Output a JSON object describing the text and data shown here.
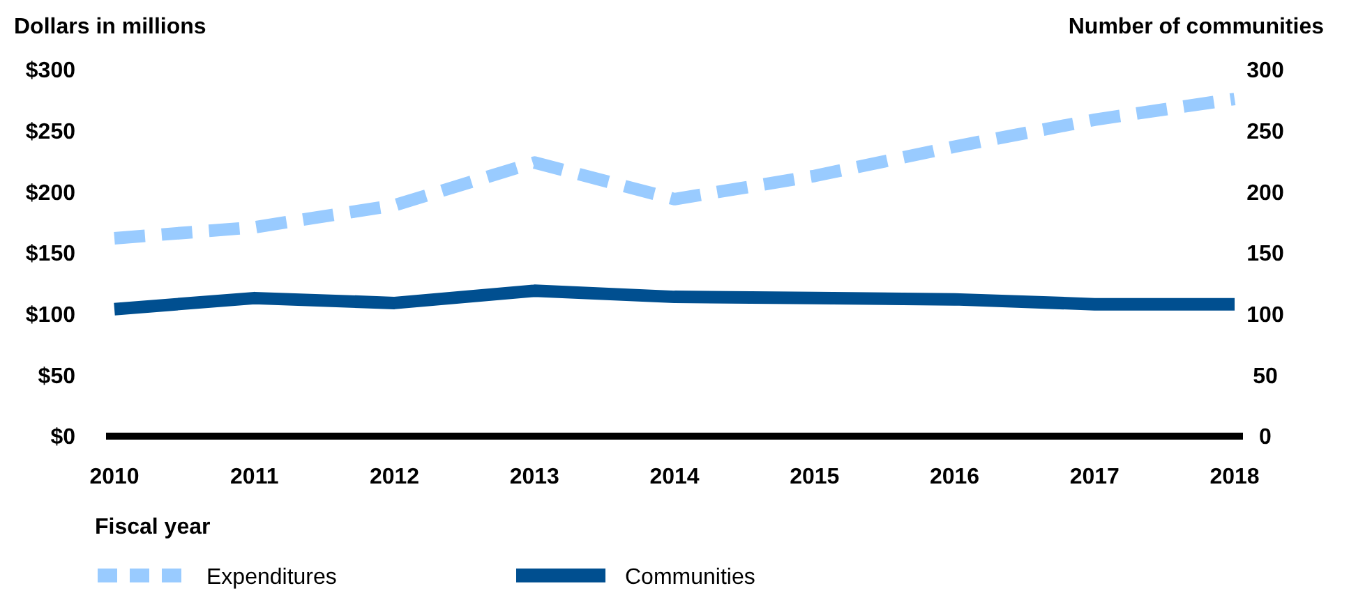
{
  "chart_data": {
    "type": "line",
    "ylabel": "Dollars in millions",
    "y2label": "Number of communities",
    "xlabel": "Fiscal year",
    "categories": [
      "2010",
      "2011",
      "2012",
      "2013",
      "2014",
      "2015",
      "2016",
      "2017",
      "2018"
    ],
    "ylim": [
      0,
      300
    ],
    "yticks": [
      {
        "value": 0,
        "label": "$0"
      },
      {
        "value": 50,
        "label": "$50"
      },
      {
        "value": 100,
        "label": "$100"
      },
      {
        "value": 150,
        "label": "$150"
      },
      {
        "value": 200,
        "label": "$200"
      },
      {
        "value": 250,
        "label": "$250"
      },
      {
        "value": 300,
        "label": "$300"
      }
    ],
    "y2lim": [
      0,
      300
    ],
    "y2ticks": [
      0,
      50,
      100,
      150,
      200,
      250,
      300
    ],
    "legend": "bottom left",
    "grid": false,
    "series": [
      {
        "name": "Expenditures",
        "color": "#99cbff",
        "line_style": "dashed",
        "values": [
          162,
          171,
          189,
          224,
          194,
          213,
          237,
          259,
          276
        ]
      },
      {
        "name": "Communities",
        "color": "#004f90",
        "line_style": "solid",
        "axis": "y2",
        "values": [
          104,
          113,
          109,
          119,
          114,
          113,
          112,
          108,
          108
        ]
      }
    ]
  }
}
